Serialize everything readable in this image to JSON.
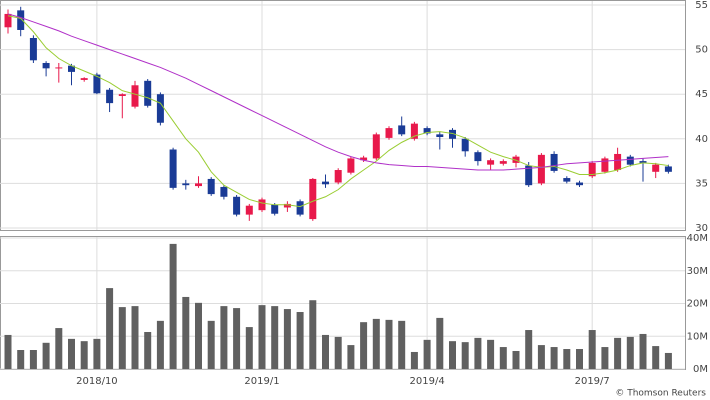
{
  "chart_data": {
    "type": "candlestick",
    "categories": [
      null,
      null,
      null,
      null,
      null,
      null,
      null,
      "2018/10",
      null,
      null,
      null,
      null,
      null,
      null,
      null,
      null,
      null,
      null,
      null,
      null,
      "2019/1",
      null,
      null,
      null,
      null,
      null,
      null,
      null,
      null,
      null,
      null,
      null,
      null,
      "2019/4",
      null,
      null,
      null,
      null,
      null,
      null,
      null,
      null,
      null,
      null,
      null,
      null,
      "2019/7",
      null,
      null,
      null,
      null,
      null,
      null
    ],
    "open": [
      52.5,
      54.4,
      51.3,
      48.5,
      47.9,
      48.2,
      46.6,
      47.2,
      45.5,
      44.8,
      43.6,
      46.5,
      45,
      38.8,
      35,
      34.7,
      35.5,
      34.6,
      33.5,
      31.5,
      32,
      32.6,
      32.3,
      33,
      31,
      35.2,
      35.1,
      36.2,
      37.6,
      37.8,
      40.1,
      41.5,
      40,
      41.2,
      40.5,
      41,
      40,
      38.5,
      37.1,
      37.2,
      37.3,
      37,
      35,
      38.3,
      35.6,
      35.1,
      35.8,
      36.3,
      36.5,
      38,
      37.5,
      36.3,
      36.9
    ],
    "high": [
      54.5,
      54.8,
      51.6,
      48.7,
      48.5,
      48.4,
      46.9,
      47.4,
      45.7,
      45.1,
      46.5,
      46.7,
      45.2,
      39,
      35.4,
      35.8,
      35.7,
      34.8,
      33.7,
      32.7,
      33.4,
      32.8,
      33,
      33.2,
      35.6,
      36,
      36.7,
      38,
      38.1,
      40.7,
      41.4,
      42.5,
      41.9,
      41.4,
      40.8,
      41.2,
      40.2,
      38.7,
      37.8,
      37.7,
      38.2,
      37.4,
      38.4,
      38.6,
      35.8,
      35.3,
      37.5,
      38,
      39,
      38.2,
      37.8,
      37.3,
      37.1
    ],
    "low": [
      51.8,
      51.5,
      48.5,
      47,
      46.3,
      46,
      46.4,
      45,
      43,
      42.3,
      43.4,
      43.5,
      41.5,
      34.3,
      34.3,
      34.5,
      33.6,
      33.2,
      31.3,
      30.8,
      31.8,
      31.4,
      31.8,
      31.3,
      30.8,
      34.5,
      34.9,
      36,
      37.4,
      37.6,
      39.9,
      40.3,
      39.8,
      40.4,
      38.8,
      39,
      38,
      37,
      36.5,
      37,
      36.8,
      34.6,
      34.8,
      36.2,
      35,
      34.6,
      35.6,
      36.1,
      36.3,
      36.9,
      35.2,
      35.6,
      36.1
    ],
    "close": [
      54,
      52.2,
      48.8,
      47.9,
      48,
      47.5,
      46.8,
      45.1,
      44,
      45,
      46,
      43.7,
      41.8,
      34.5,
      34.8,
      35,
      33.8,
      33.5,
      31.5,
      32.5,
      33.2,
      31.6,
      32.7,
      31.5,
      35.5,
      34.9,
      36.5,
      37.8,
      37.9,
      40.5,
      41.2,
      40.5,
      41.7,
      40.6,
      40.2,
      40,
      38.6,
      37.5,
      37.6,
      37.5,
      38,
      34.8,
      38.2,
      36.4,
      35.2,
      34.8,
      37.3,
      37.8,
      38.3,
      37.1,
      37.3,
      37.1,
      36.3
    ],
    "up_color": "#e8194b",
    "down_color": "#1a3b96",
    "ylim": [
      30,
      55
    ],
    "yticks": [
      30,
      35,
      40,
      45,
      50,
      55
    ],
    "moving_averages": [
      {
        "color": "#9acd32",
        "values": [
          53.8,
          53.5,
          52,
          50.2,
          49,
          48.2,
          47.6,
          47,
          46.3,
          45.4,
          45,
          44.6,
          44,
          42,
          40,
          38.5,
          36.3,
          34.8,
          34,
          33.2,
          32.8,
          32.6,
          32.6,
          32.4,
          33,
          33.5,
          34.3,
          35.5,
          36.5,
          37.5,
          38.7,
          39.6,
          40.3,
          40.7,
          40.8,
          40.6,
          40.1,
          39.3,
          38.5,
          38,
          37.6,
          37,
          36.8,
          36.9,
          36.5,
          36,
          36,
          36.2,
          36.5,
          37,
          37.3,
          37.2,
          37
        ]
      },
      {
        "color": "#b030c8",
        "values": [
          54,
          53.6,
          53.1,
          52.6,
          52.1,
          51.5,
          51,
          50.5,
          50,
          49.5,
          49,
          48.5,
          48,
          47.4,
          46.8,
          46.1,
          45.4,
          44.7,
          44,
          43.3,
          42.6,
          41.9,
          41.2,
          40.5,
          39.8,
          39.1,
          38.5,
          38,
          37.6,
          37.3,
          37.1,
          37,
          36.9,
          36.9,
          36.8,
          36.7,
          36.6,
          36.5,
          36.5,
          36.5,
          36.6,
          36.7,
          36.8,
          37,
          37.2,
          37.3,
          37.4,
          37.5,
          37.6,
          37.7,
          37.8,
          37.9,
          38
        ]
      }
    ],
    "volume": {
      "color": "#606060",
      "values": [
        10.4,
        5.8,
        5.8,
        8,
        12.5,
        9.2,
        8.5,
        9.2,
        24.7,
        18.9,
        19.2,
        11.3,
        14.7,
        38.2,
        22,
        20.2,
        14.7,
        19.2,
        18.6,
        12.8,
        19.5,
        19.2,
        18.3,
        17.4,
        21,
        10.4,
        9.8,
        7.3,
        14.3,
        15.3,
        15,
        14.7,
        5.2,
        8.9,
        15.6,
        8.5,
        8.2,
        9.5,
        8.9,
        6.7,
        5.5,
        11.9,
        7.3,
        6.7,
        6.1,
        6.1,
        11.9,
        6.7,
        9.5,
        9.8,
        10.7,
        7,
        4.9
      ],
      "ylim": [
        0,
        40
      ],
      "yticks": [
        {
          "value": 0,
          "label": "0M"
        },
        {
          "value": 10,
          "label": "10M"
        },
        {
          "value": 20,
          "label": "20M"
        },
        {
          "value": 30,
          "label": "30M"
        },
        {
          "value": 40,
          "label": "40M"
        }
      ]
    },
    "grid": true,
    "credit": "© Thomson Reuters"
  }
}
